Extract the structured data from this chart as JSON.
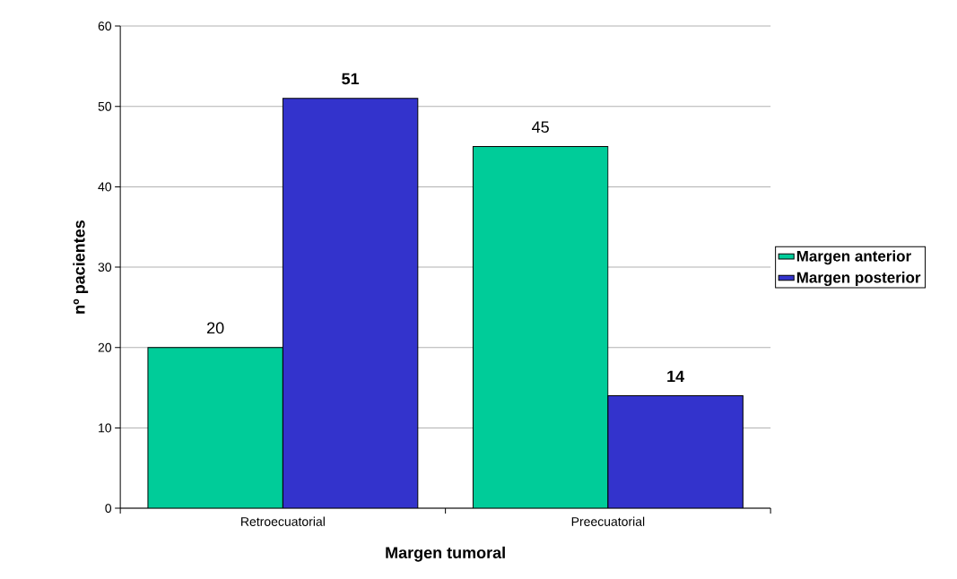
{
  "chart_data": {
    "type": "bar",
    "xlabel": "Margen tumoral",
    "ylabel": "nº pacientes",
    "categories": [
      "Retroecuatorial",
      "Preecuatorial"
    ],
    "series": [
      {
        "name": "Margen anterior",
        "color": "#00cc99",
        "values": [
          20,
          45
        ]
      },
      {
        "name": "Margen posterior",
        "color": "#3333cc",
        "values": [
          51,
          14
        ]
      }
    ],
    "ylim": [
      0,
      60
    ],
    "yticks": [
      0,
      10,
      20,
      30,
      40,
      50,
      60
    ],
    "grid": "y",
    "legend": "right",
    "data_labels": true
  }
}
